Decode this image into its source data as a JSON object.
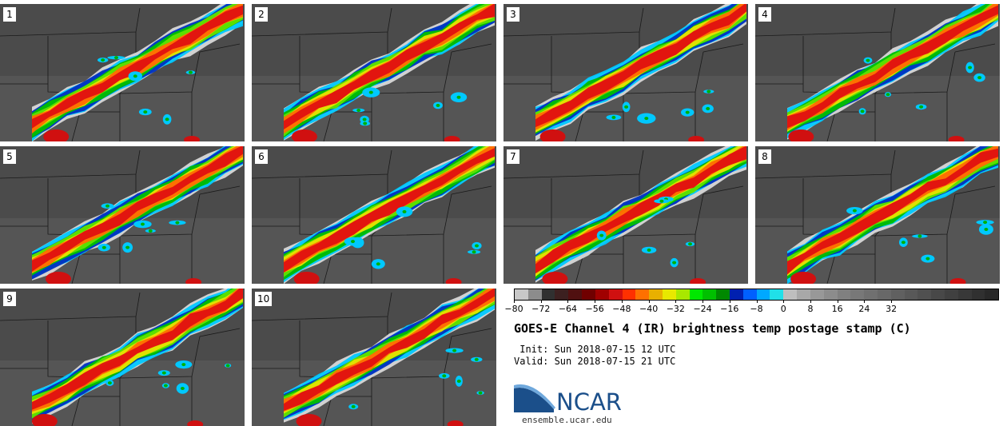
{
  "panels": [
    {
      "label": "1"
    },
    {
      "label": "2"
    },
    {
      "label": "3"
    },
    {
      "label": "4"
    },
    {
      "label": "5"
    },
    {
      "label": "6"
    },
    {
      "label": "7"
    },
    {
      "label": "8"
    },
    {
      "label": "9"
    },
    {
      "label": "10"
    }
  ],
  "colorbar": {
    "colors": [
      "#c8c8c8",
      "#8c8c8c",
      "#303030",
      "#3c2020",
      "#501010",
      "#700000",
      "#a00000",
      "#d01010",
      "#ff3000",
      "#ff7000",
      "#e8b000",
      "#e8e800",
      "#a8e800",
      "#00e800",
      "#00c000",
      "#008800",
      "#0020b0",
      "#0060ff",
      "#00a8ff",
      "#20e0e8",
      "#bebebe",
      "#a8a8a8",
      "#989898",
      "#8c8c8c",
      "#808080",
      "#787878",
      "#707070",
      "#686868",
      "#606060",
      "#585858",
      "#505050",
      "#484848",
      "#404040",
      "#383838",
      "#303030",
      "#282828"
    ],
    "ticks": [
      "−80",
      "−72",
      "−64",
      "−56",
      "−48",
      "−40",
      "−32",
      "−24",
      "−16",
      "−8",
      "0",
      "8",
      "16",
      "24",
      "32"
    ]
  },
  "title": "GOES-E Channel 4 (IR) brightness temp postage stamp (C)",
  "init": " Init: Sun 2018-07-15 12 UTC",
  "valid": "Valid: Sun 2018-07-15 21 UTC",
  "logo": {
    "text": "NCAR",
    "site": "ensemble.ucar.edu",
    "color": "#1b4f8a"
  }
}
